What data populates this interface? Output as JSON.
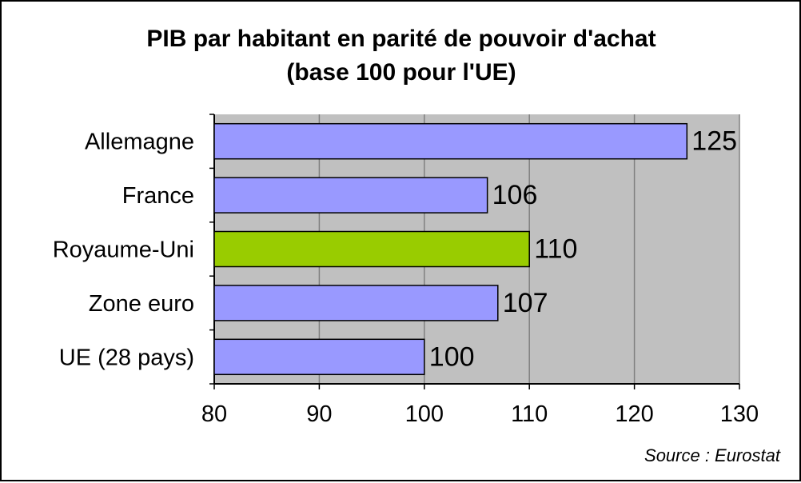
{
  "chart_data": {
    "type": "bar",
    "orientation": "horizontal",
    "title_lines": [
      "PIB par habitant en parité de pouvoir d'achat",
      "(base 100 pour l'UE)"
    ],
    "categories": [
      "Allemagne",
      "France",
      "Royaume-Uni",
      "Zone euro",
      "UE (28 pays)"
    ],
    "values": [
      125,
      106,
      110,
      107,
      100
    ],
    "value_labels": [
      "125",
      "106",
      "110",
      "107",
      "100"
    ],
    "bar_colors": [
      "#9999ff",
      "#9999ff",
      "#99cc00",
      "#9999ff",
      "#9999ff"
    ],
    "xlim": [
      80,
      130
    ],
    "x_ticks": [
      80,
      90,
      100,
      110,
      120,
      130
    ],
    "x_tick_labels": [
      "80",
      "90",
      "100",
      "110",
      "120",
      "130"
    ],
    "xlabel": "",
    "ylabel": "",
    "grid": true,
    "legend": "none",
    "plot_background": "#c0c0c0",
    "gridline_color": "#808080",
    "source": "Source : Eurostat"
  }
}
